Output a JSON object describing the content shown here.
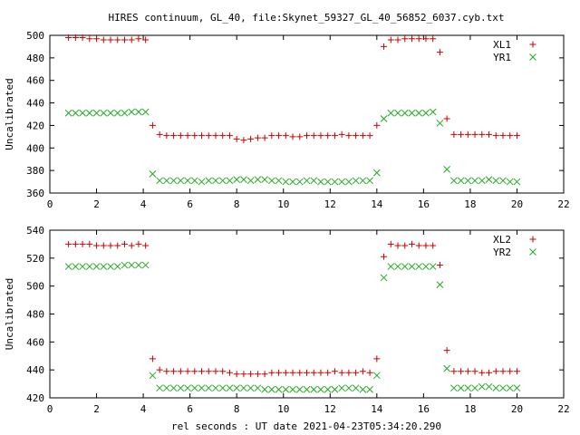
{
  "title": "HIRES continuum, GL_40, file:Skynet_59327_GL_40_56852_6037.cyb.txt",
  "xlabel": "rel seconds : UT date 2021-04-23T05:34:20.290",
  "colors": {
    "red": "#cc0000",
    "green": "#22aa22",
    "axis": "#000000",
    "grid": "#999999"
  },
  "chart_data": [
    {
      "type": "scatter",
      "ylabel": "Uncalibrated",
      "xlim": [
        0,
        22
      ],
      "ylim": [
        360,
        500
      ],
      "xticks": [
        0,
        2,
        4,
        6,
        8,
        10,
        12,
        14,
        16,
        18,
        20,
        22
      ],
      "yticks": [
        360,
        380,
        400,
        420,
        440,
        460,
        480,
        500
      ],
      "legend": "top-right",
      "series": [
        {
          "name": "XL1",
          "marker": "plus",
          "color": "#cc0000",
          "x": [
            0.8,
            1.1,
            1.4,
            1.7,
            2.0,
            2.3,
            2.6,
            2.9,
            3.2,
            3.5,
            3.8,
            4.1,
            4.4,
            4.7,
            5.0,
            5.3,
            5.6,
            5.9,
            6.2,
            6.5,
            6.8,
            7.1,
            7.4,
            7.7,
            8.0,
            8.3,
            8.6,
            8.9,
            9.2,
            9.5,
            9.8,
            10.1,
            10.4,
            10.7,
            11.0,
            11.3,
            11.6,
            11.9,
            12.2,
            12.5,
            12.8,
            13.1,
            13.4,
            13.7,
            14.0,
            14.3,
            14.6,
            14.9,
            15.2,
            15.5,
            15.8,
            16.1,
            16.4,
            16.7,
            17.0,
            17.3,
            17.6,
            17.9,
            18.2,
            18.5,
            18.8,
            19.1,
            19.4,
            19.7,
            20.0
          ],
          "y": [
            498,
            498,
            498,
            497,
            497,
            496,
            496,
            496,
            496,
            496,
            497,
            496,
            420,
            412,
            411,
            411,
            411,
            411,
            411,
            411,
            411,
            411,
            411,
            411,
            408,
            407,
            408,
            409,
            409,
            411,
            411,
            411,
            410,
            410,
            411,
            411,
            411,
            411,
            411,
            412,
            411,
            411,
            411,
            411,
            420,
            490,
            496,
            496,
            497,
            497,
            497,
            497,
            497,
            485,
            426,
            412,
            412,
            412,
            412,
            412,
            412,
            411,
            411,
            411,
            411
          ]
        },
        {
          "name": "YR1",
          "marker": "cross",
          "color": "#22aa22",
          "x": [
            0.8,
            1.1,
            1.4,
            1.7,
            2.0,
            2.3,
            2.6,
            2.9,
            3.2,
            3.5,
            3.8,
            4.1,
            4.4,
            4.7,
            5.0,
            5.3,
            5.6,
            5.9,
            6.2,
            6.5,
            6.8,
            7.1,
            7.4,
            7.7,
            8.0,
            8.3,
            8.6,
            8.9,
            9.2,
            9.5,
            9.8,
            10.1,
            10.4,
            10.7,
            11.0,
            11.3,
            11.6,
            11.9,
            12.2,
            12.5,
            12.8,
            13.1,
            13.4,
            13.7,
            14.0,
            14.3,
            14.6,
            14.9,
            15.2,
            15.5,
            15.8,
            16.1,
            16.4,
            16.7,
            17.0,
            17.3,
            17.6,
            17.9,
            18.2,
            18.5,
            18.8,
            19.1,
            19.4,
            19.7,
            20.0
          ],
          "y": [
            431,
            431,
            431,
            431,
            431,
            431,
            431,
            431,
            431,
            432,
            432,
            432,
            377,
            371,
            371,
            371,
            371,
            371,
            371,
            370,
            371,
            371,
            371,
            371,
            372,
            372,
            371,
            372,
            372,
            371,
            371,
            370,
            370,
            370,
            371,
            371,
            370,
            370,
            370,
            370,
            370,
            371,
            371,
            371,
            378,
            426,
            431,
            431,
            431,
            431,
            431,
            431,
            432,
            422,
            381,
            371,
            371,
            371,
            371,
            371,
            372,
            371,
            371,
            370,
            370
          ]
        }
      ]
    },
    {
      "type": "scatter",
      "ylabel": "Uncalibrated",
      "xlim": [
        0,
        22
      ],
      "ylim": [
        420,
        540
      ],
      "xticks": [
        0,
        2,
        4,
        6,
        8,
        10,
        12,
        14,
        16,
        18,
        20,
        22
      ],
      "yticks": [
        420,
        440,
        460,
        480,
        500,
        520,
        540
      ],
      "legend": "top-right",
      "series": [
        {
          "name": "XL2",
          "marker": "plus",
          "color": "#cc0000",
          "x": [
            0.8,
            1.1,
            1.4,
            1.7,
            2.0,
            2.3,
            2.6,
            2.9,
            3.2,
            3.5,
            3.8,
            4.1,
            4.4,
            4.7,
            5.0,
            5.3,
            5.6,
            5.9,
            6.2,
            6.5,
            6.8,
            7.1,
            7.4,
            7.7,
            8.0,
            8.3,
            8.6,
            8.9,
            9.2,
            9.5,
            9.8,
            10.1,
            10.4,
            10.7,
            11.0,
            11.3,
            11.6,
            11.9,
            12.2,
            12.5,
            12.8,
            13.1,
            13.4,
            13.7,
            14.0,
            14.3,
            14.6,
            14.9,
            15.2,
            15.5,
            15.8,
            16.1,
            16.4,
            16.7,
            17.0,
            17.3,
            17.6,
            17.9,
            18.2,
            18.5,
            18.8,
            19.1,
            19.4,
            19.7,
            20.0
          ],
          "y": [
            530,
            530,
            530,
            530,
            529,
            529,
            529,
            529,
            530,
            529,
            530,
            529,
            448,
            440,
            439,
            439,
            439,
            439,
            439,
            439,
            439,
            439,
            439,
            438,
            437,
            437,
            437,
            437,
            437,
            438,
            438,
            438,
            438,
            438,
            438,
            438,
            438,
            438,
            439,
            438,
            438,
            438,
            439,
            438,
            448,
            521,
            530,
            529,
            529,
            530,
            529,
            529,
            529,
            515,
            454,
            439,
            439,
            439,
            439,
            438,
            438,
            439,
            439,
            439,
            439
          ]
        },
        {
          "name": "YR2",
          "marker": "cross",
          "color": "#22aa22",
          "x": [
            0.8,
            1.1,
            1.4,
            1.7,
            2.0,
            2.3,
            2.6,
            2.9,
            3.2,
            3.5,
            3.8,
            4.1,
            4.4,
            4.7,
            5.0,
            5.3,
            5.6,
            5.9,
            6.2,
            6.5,
            6.8,
            7.1,
            7.4,
            7.7,
            8.0,
            8.3,
            8.6,
            8.9,
            9.2,
            9.5,
            9.8,
            10.1,
            10.4,
            10.7,
            11.0,
            11.3,
            11.6,
            11.9,
            12.2,
            12.5,
            12.8,
            13.1,
            13.4,
            13.7,
            14.0,
            14.3,
            14.6,
            14.9,
            15.2,
            15.5,
            15.8,
            16.1,
            16.4,
            16.7,
            17.0,
            17.3,
            17.6,
            17.9,
            18.2,
            18.5,
            18.8,
            19.1,
            19.4,
            19.7,
            20.0
          ],
          "y": [
            514,
            514,
            514,
            514,
            514,
            514,
            514,
            514,
            515,
            515,
            515,
            515,
            436,
            427,
            427,
            427,
            427,
            427,
            427,
            427,
            427,
            427,
            427,
            427,
            427,
            427,
            427,
            427,
            426,
            426,
            426,
            426,
            426,
            426,
            426,
            426,
            426,
            426,
            426,
            427,
            427,
            427,
            426,
            426,
            436,
            506,
            514,
            514,
            514,
            514,
            514,
            514,
            514,
            501,
            441,
            427,
            427,
            427,
            427,
            428,
            428,
            427,
            427,
            427,
            427
          ]
        }
      ]
    }
  ]
}
